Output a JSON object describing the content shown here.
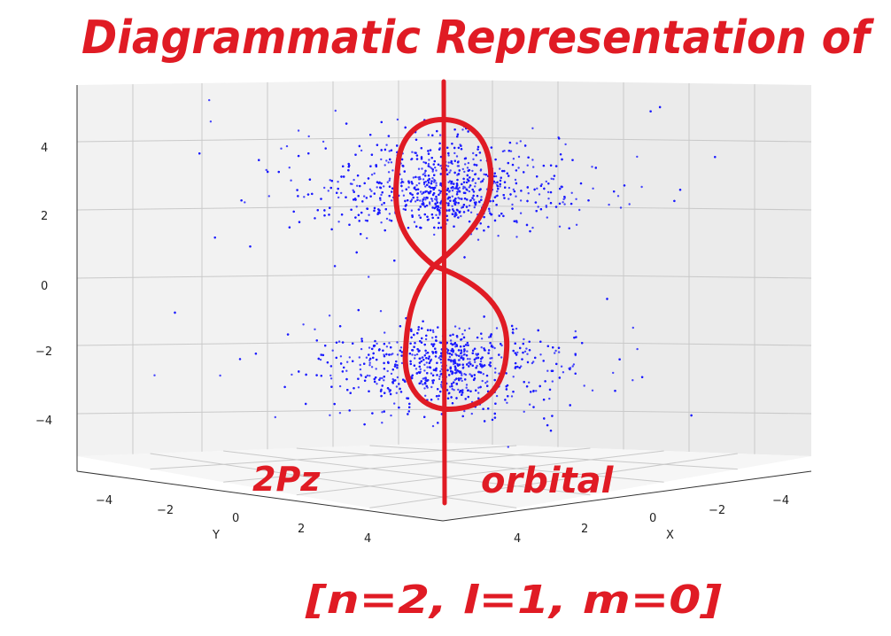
{
  "annotations": {
    "title": "Diagrammatic Representation of",
    "orbital_name": "2Pz",
    "orbital_word": "orbital",
    "quantum_numbers": "[n=2, l=1, m=0]"
  },
  "chart_data": {
    "type": "scatter",
    "projection": "3d",
    "grid": true,
    "z_ticks": [
      "4",
      "2",
      "0",
      "−2",
      "−4"
    ],
    "y_ticks": [
      "−4",
      "−2",
      "0",
      "2",
      "4"
    ],
    "x_ticks": [
      "4",
      "2",
      "0",
      "−2",
      "−4"
    ],
    "xlabel": "X",
    "ylabel": "Y",
    "zlabel": "",
    "xlim": [
      -5,
      5
    ],
    "ylim": [
      -5,
      5
    ],
    "zlim": [
      -5,
      5
    ],
    "series": [
      {
        "points": "random sample from |psi(2,1,0)|^2 (two lobes along z)",
        "color": "#0000ff"
      }
    ],
    "overlay_color": "#e01b24"
  }
}
